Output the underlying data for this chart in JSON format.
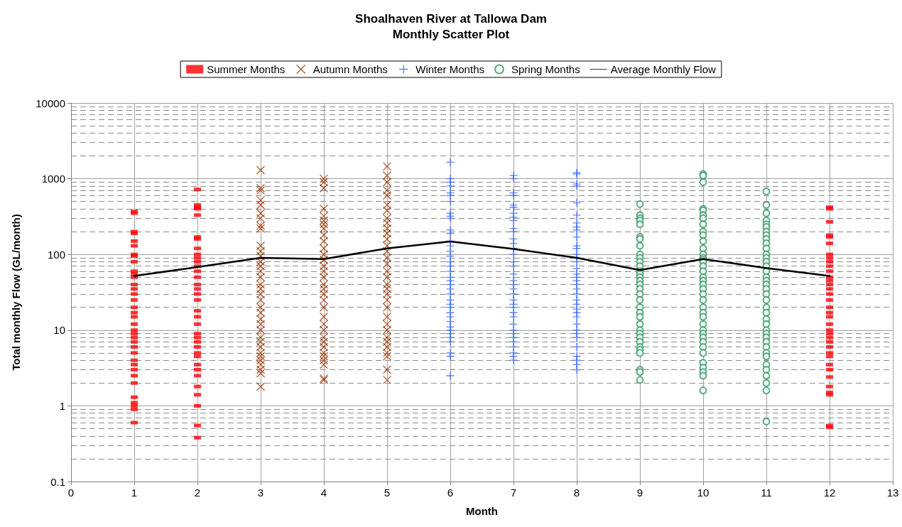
{
  "chart_data": {
    "type": "scatter",
    "title": "Shoalhaven River at Tallowa Dam",
    "subtitle": "Monthly Scatter Plot",
    "xlabel": "Month",
    "ylabel": "Total monthly Flow (GL/month)",
    "log": "y",
    "grid": true,
    "legend": "top",
    "xlim": [
      0,
      13
    ],
    "xticks": [
      0,
      1,
      2,
      3,
      4,
      5,
      6,
      7,
      8,
      9,
      10,
      11,
      12,
      13
    ],
    "ylim": [
      0.1,
      10000
    ],
    "yticks": [
      0.1,
      1,
      10,
      100,
      1000,
      10000
    ],
    "series": [
      {
        "name": "Summer Months",
        "color": "#ff0000",
        "marker": "square",
        "x": [
          1,
          1,
          1,
          1,
          1,
          1,
          1,
          1,
          1,
          1,
          1,
          1,
          1,
          1,
          1,
          1,
          1,
          1,
          1,
          1,
          1,
          1,
          1,
          1,
          1,
          1,
          1,
          1,
          1,
          1,
          1,
          1,
          1,
          1,
          1,
          1,
          2,
          2,
          2,
          2,
          2,
          2,
          2,
          2,
          2,
          2,
          2,
          2,
          2,
          2,
          2,
          2,
          2,
          2,
          2,
          2,
          2,
          2,
          2,
          2,
          2,
          2,
          2,
          2,
          2,
          2,
          2,
          2,
          2,
          2,
          2,
          12,
          12,
          12,
          12,
          12,
          12,
          12,
          12,
          12,
          12,
          12,
          12,
          12,
          12,
          12,
          12,
          12,
          12,
          12,
          12,
          12,
          12,
          12,
          12,
          12,
          12,
          12,
          12,
          12,
          12,
          12,
          12,
          12,
          12,
          12,
          12
        ],
        "values": [
          370,
          350,
          200,
          190,
          150,
          130,
          100,
          95,
          80,
          60,
          55,
          50,
          40,
          35,
          30,
          25,
          20,
          17,
          15,
          12,
          10,
          9,
          8,
          7,
          6,
          5,
          4,
          3.5,
          3,
          2.5,
          2,
          1.3,
          1.1,
          1,
          0.9,
          0.6,
          720,
          450,
          420,
          400,
          330,
          170,
          160,
          120,
          100,
          90,
          80,
          70,
          60,
          50,
          40,
          35,
          30,
          25,
          18,
          15,
          12,
          9,
          8,
          7,
          6,
          5,
          4.5,
          3.5,
          3,
          2.5,
          1.8,
          1.4,
          1,
          0.55,
          0.38,
          420,
          400,
          270,
          180,
          170,
          140,
          100,
          90,
          80,
          70,
          60,
          50,
          45,
          40,
          35,
          30,
          25,
          20,
          17,
          15,
          12,
          10,
          9,
          8,
          7,
          6,
          5,
          4.5,
          3.5,
          3,
          2.4,
          1.8,
          1.5,
          1.4,
          0.55,
          0.52
        ]
      },
      {
        "name": "Autumn Months",
        "color": "#993300",
        "marker": "x",
        "x": [
          3,
          3,
          3,
          3,
          3,
          3,
          3,
          3,
          3,
          3,
          3,
          3,
          3,
          3,
          3,
          3,
          3,
          3,
          3,
          3,
          3,
          3,
          3,
          3,
          3,
          3,
          3,
          3,
          3,
          3,
          3,
          3,
          3,
          3,
          3,
          4,
          4,
          4,
          4,
          4,
          4,
          4,
          4,
          4,
          4,
          4,
          4,
          4,
          4,
          4,
          4,
          4,
          4,
          4,
          4,
          4,
          4,
          4,
          4,
          4,
          4,
          4,
          4,
          4,
          4,
          4,
          4,
          4,
          5,
          5,
          5,
          5,
          5,
          5,
          5,
          5,
          5,
          5,
          5,
          5,
          5,
          5,
          5,
          5,
          5,
          5,
          5,
          5,
          5,
          5,
          5,
          5,
          5,
          5,
          5,
          5,
          5,
          5,
          5,
          5,
          5
        ],
        "values": [
          1300,
          750,
          700,
          520,
          450,
          350,
          300,
          240,
          220,
          130,
          110,
          95,
          80,
          70,
          60,
          50,
          40,
          35,
          30,
          25,
          20,
          17,
          14,
          12,
          10,
          8,
          7,
          6,
          5,
          4.5,
          4,
          3.5,
          3,
          2.7,
          1.8,
          1000,
          900,
          750,
          400,
          320,
          280,
          250,
          220,
          180,
          150,
          120,
          100,
          85,
          70,
          60,
          50,
          40,
          35,
          30,
          25,
          20,
          15,
          12,
          10,
          8,
          7,
          6,
          5,
          4.5,
          4,
          3.5,
          2.3,
          2.2,
          1450,
          1100,
          900,
          700,
          600,
          450,
          380,
          300,
          260,
          220,
          190,
          160,
          130,
          110,
          90,
          75,
          60,
          50,
          40,
          35,
          30,
          25,
          20,
          15,
          12,
          10,
          8,
          7,
          6,
          5,
          4.5,
          3,
          2.2
        ]
      },
      {
        "name": "Winter Months",
        "color": "#3366ff",
        "marker": "plus",
        "x": [
          6,
          6,
          6,
          6,
          6,
          6,
          6,
          6,
          6,
          6,
          6,
          6,
          6,
          6,
          6,
          6,
          6,
          6,
          6,
          6,
          6,
          6,
          6,
          6,
          6,
          6,
          6,
          6,
          6,
          6,
          6,
          6,
          6,
          6,
          6,
          6,
          6,
          6,
          7,
          7,
          7,
          7,
          7,
          7,
          7,
          7,
          7,
          7,
          7,
          7,
          7,
          7,
          7,
          7,
          7,
          7,
          7,
          7,
          7,
          7,
          7,
          7,
          7,
          7,
          7,
          7,
          7,
          7,
          7,
          7,
          7,
          7,
          7,
          7,
          8,
          8,
          8,
          8,
          8,
          8,
          8,
          8,
          8,
          8,
          8,
          8,
          8,
          8,
          8,
          8,
          8,
          8,
          8,
          8,
          8,
          8,
          8,
          8,
          8,
          8,
          8,
          8,
          8,
          8,
          8,
          8,
          8,
          8,
          8,
          8
        ],
        "values": [
          1650,
          1000,
          900,
          800,
          650,
          600,
          500,
          350,
          320,
          300,
          210,
          190,
          150,
          130,
          110,
          95,
          80,
          70,
          60,
          50,
          45,
          40,
          35,
          30,
          25,
          22,
          20,
          17,
          15,
          13,
          11,
          10,
          9,
          8,
          7,
          5,
          4.5,
          2.5,
          1100,
          1000,
          650,
          600,
          450,
          420,
          350,
          310,
          280,
          220,
          200,
          160,
          140,
          120,
          100,
          80,
          70,
          55,
          45,
          40,
          35,
          30,
          25,
          22,
          20,
          17,
          15,
          12,
          10,
          9,
          8,
          7,
          6,
          5,
          4.5,
          4,
          1200,
          1150,
          850,
          800,
          480,
          330,
          260,
          230,
          210,
          170,
          130,
          120,
          100,
          90,
          80,
          65,
          55,
          50,
          45,
          40,
          35,
          30,
          25,
          22,
          19,
          17,
          15,
          12,
          10,
          9,
          8,
          6,
          4.5,
          4,
          3.5,
          3
        ]
      },
      {
        "name": "Spring Months",
        "color": "#339966",
        "marker": "circle",
        "x": [
          9,
          9,
          9,
          9,
          9,
          9,
          9,
          9,
          9,
          9,
          9,
          9,
          9,
          9,
          9,
          9,
          9,
          9,
          9,
          9,
          9,
          9,
          9,
          9,
          9,
          9,
          9,
          9,
          9,
          9,
          9,
          9,
          9,
          9,
          10,
          10,
          10,
          10,
          10,
          10,
          10,
          10,
          10,
          10,
          10,
          10,
          10,
          10,
          10,
          10,
          10,
          10,
          10,
          10,
          10,
          10,
          10,
          10,
          10,
          10,
          10,
          10,
          10,
          10,
          10,
          10,
          10,
          10,
          10,
          10,
          10,
          10,
          10,
          11,
          11,
          11,
          11,
          11,
          11,
          11,
          11,
          11,
          11,
          11,
          11,
          11,
          11,
          11,
          11,
          11,
          11,
          11,
          11,
          11,
          11,
          11,
          11,
          11,
          11,
          11,
          11,
          11,
          11,
          11,
          11,
          11,
          11,
          11,
          11,
          11,
          11,
          11
        ],
        "values": [
          460,
          330,
          300,
          280,
          250,
          170,
          160,
          130,
          100,
          90,
          80,
          70,
          60,
          55,
          50,
          45,
          40,
          35,
          30,
          25,
          20,
          17,
          15,
          12,
          10,
          9,
          8,
          7,
          6,
          5.5,
          5,
          3,
          2.8,
          2.2,
          1150,
          1100,
          900,
          400,
          380,
          330,
          300,
          250,
          200,
          180,
          150,
          120,
          100,
          90,
          85,
          80,
          70,
          60,
          50,
          45,
          40,
          35,
          30,
          25,
          20,
          17,
          15,
          12,
          10,
          9,
          8,
          7,
          6,
          5,
          3.7,
          3.2,
          2.8,
          2.5,
          1.6,
          680,
          450,
          350,
          280,
          250,
          230,
          200,
          180,
          160,
          140,
          120,
          100,
          90,
          80,
          70,
          60,
          50,
          45,
          40,
          35,
          30,
          25,
          20,
          17,
          14,
          12,
          10,
          9,
          8,
          7,
          6,
          5,
          4.5,
          3.5,
          3,
          2.5,
          2,
          1.6,
          0.62
        ]
      },
      {
        "name": "Average Monthly Flow",
        "type": "line",
        "color": "#000000",
        "marker": "none",
        "line_style": "solid",
        "x": [
          1,
          2,
          3,
          4,
          5,
          6,
          7,
          8,
          9,
          10,
          11,
          12
        ],
        "values": [
          52,
          68,
          90,
          87,
          120,
          148,
          118,
          90,
          62,
          87,
          66,
          52
        ]
      }
    ]
  }
}
